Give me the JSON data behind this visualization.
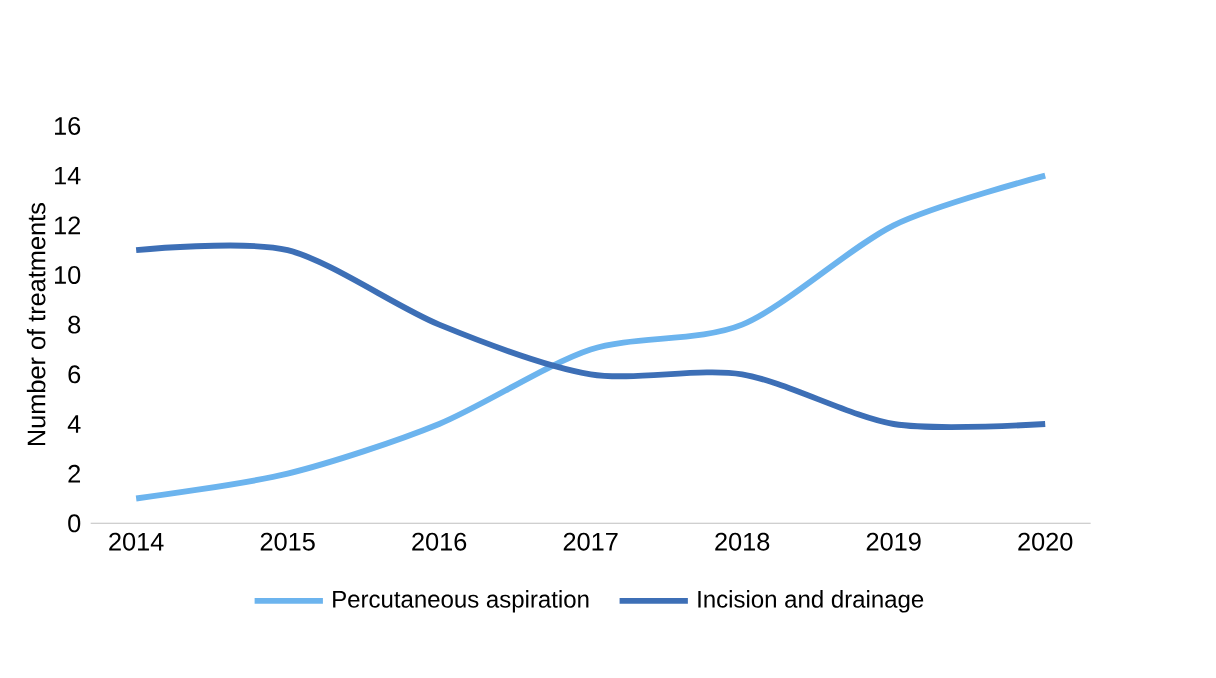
{
  "chart_data": {
    "type": "line",
    "ylabel": "Number of treatments",
    "categories": [
      "2014",
      "2015",
      "2016",
      "2017",
      "2018",
      "2019",
      "2020"
    ],
    "series": [
      {
        "name": "Percutaneous aspiration",
        "color": "#6cb4ee",
        "values": [
          1,
          2,
          4,
          7,
          8,
          12,
          14
        ]
      },
      {
        "name": "Incision and drainage",
        "color": "#3d6fb6",
        "values": [
          11,
          11,
          8,
          6,
          6,
          4,
          4
        ]
      }
    ],
    "ylim": [
      0,
      16
    ],
    "yticks": [
      0,
      2,
      4,
      6,
      8,
      10,
      12,
      14,
      16
    ],
    "legend": "bottom"
  }
}
